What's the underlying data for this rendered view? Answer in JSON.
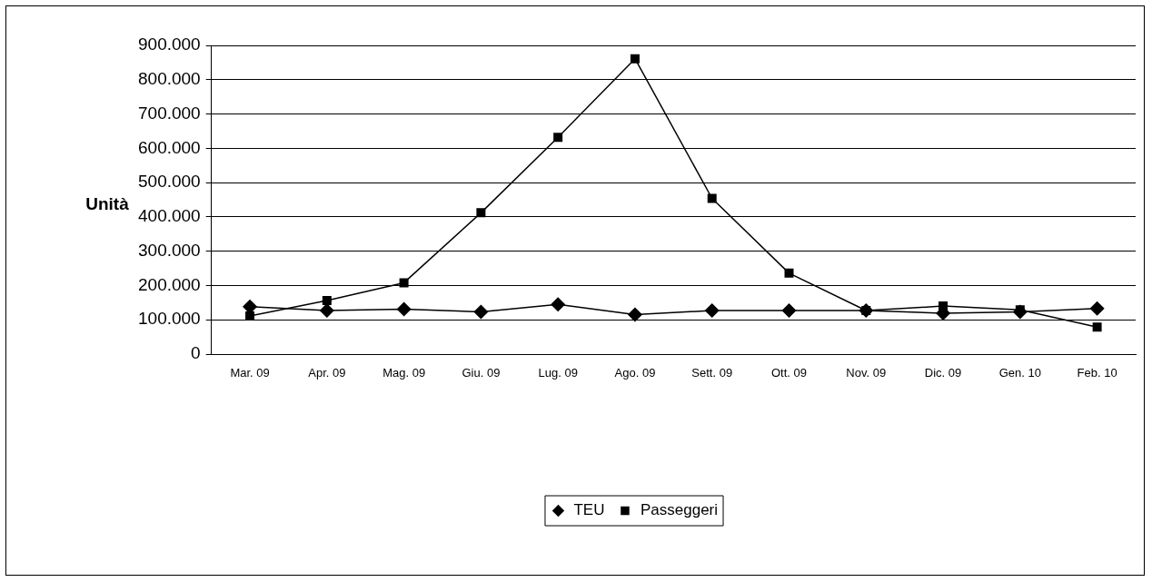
{
  "chart_data": {
    "type": "line",
    "ylabel": "Unità",
    "categories": [
      "Mar. 09",
      "Apr. 09",
      "Mag. 09",
      "Giu. 09",
      "Lug. 09",
      "Ago. 09",
      "Sett. 09",
      "Ott. 09",
      "Nov. 09",
      "Dic. 09",
      "Gen. 10",
      "Feb. 10"
    ],
    "series": [
      {
        "name": "TEU",
        "color": "#000000",
        "marker": "diamond",
        "values": [
          138000,
          127000,
          131000,
          123000,
          145000,
          115000,
          127000,
          127000,
          127000,
          119000,
          123000,
          133000
        ]
      },
      {
        "name": "Passeggeri",
        "color": "#000000",
        "marker": "square",
        "values": [
          111000,
          156000,
          208000,
          412000,
          632000,
          861000,
          454000,
          236000,
          127000,
          140000,
          129000,
          79000
        ]
      }
    ],
    "ylim": [
      0,
      900000
    ],
    "yticks": [
      0,
      {
        "value": 100000,
        "label": "100.000"
      },
      {
        "value": 200000,
        "label": "200.000"
      },
      {
        "value": 300000,
        "label": "300.000"
      },
      {
        "value": 400000,
        "label": "400.000"
      },
      {
        "value": 500000,
        "label": "500.000"
      },
      {
        "value": 600000,
        "label": "600.000"
      },
      {
        "value": 700000,
        "label": "700.000"
      },
      {
        "value": 800000,
        "label": "800.000"
      },
      {
        "value": 900000,
        "label": "900.000"
      }
    ],
    "grid": "y",
    "legend": "bottom",
    "line_style": "solid"
  }
}
